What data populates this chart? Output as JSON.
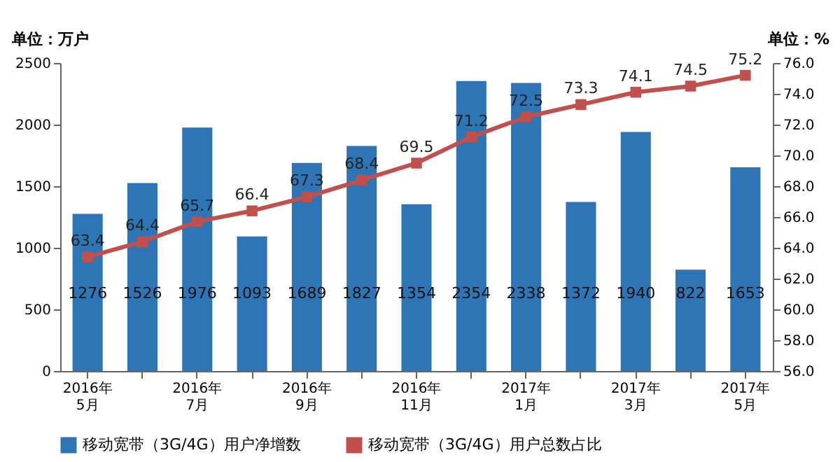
{
  "chart_data": {
    "type": "bar",
    "ylabel": "单位：万户",
    "y2label": "单位：%",
    "categories": [
      "2016年\n5月",
      null,
      "2016年\n7月",
      null,
      "2016年\n9月",
      null,
      "2016年\n11月",
      null,
      "2017年\n1月",
      null,
      "2017年\n3月",
      null,
      "2017年\n5月"
    ],
    "series": [
      {
        "name": "移动宽带（3G/4G）用户净增数",
        "color": "#2e75b6",
        "values": [
          1276,
          1526,
          1976,
          1093,
          1689,
          1827,
          1354,
          2354,
          2338,
          1372,
          1940,
          822,
          1653
        ]
      },
      {
        "name": "移动宽带（3G/4G）用户总数占比",
        "color": "#c0504d",
        "type": "line",
        "axis": "y2",
        "marker": "square",
        "values": [
          63.4,
          64.4,
          65.7,
          66.4,
          67.3,
          68.4,
          69.5,
          71.2,
          72.5,
          73.3,
          74.1,
          74.5,
          75.2
        ]
      }
    ],
    "ylim": [
      0,
      2500
    ],
    "yticks": [
      0,
      500,
      1000,
      1500,
      2000,
      2500
    ],
    "y2lim": [
      56.0,
      76.0
    ],
    "y2ticks": [
      {
        "value": 56,
        "label": "56.0"
      },
      {
        "value": 58,
        "label": "58.0"
      },
      {
        "value": 60,
        "label": "60.0"
      },
      {
        "value": 62,
        "label": "62.0"
      },
      {
        "value": 64,
        "label": "64.0"
      },
      {
        "value": 66,
        "label": "66.0"
      },
      {
        "value": 68,
        "label": "68.0"
      },
      {
        "value": 70,
        "label": "70.0"
      },
      {
        "value": 72,
        "label": "72.0"
      },
      {
        "value": 74,
        "label": "74.0"
      },
      {
        "value": 76,
        "label": "76.0"
      }
    ],
    "data_labels": true,
    "legend": "bottom",
    "grid": false
  }
}
